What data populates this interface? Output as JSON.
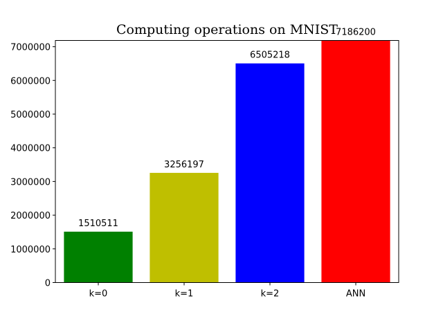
{
  "chart_data": {
    "type": "bar",
    "title": "Computing operations on MNIST",
    "xlabel": "",
    "ylabel": "",
    "categories": [
      "k=0",
      "k=1",
      "k=2",
      "ANN"
    ],
    "values": [
      1510511,
      3256197,
      6505218,
      7186200
    ],
    "value_labels": [
      "1510511",
      "3256197",
      "6505218",
      "7186200"
    ],
    "colors": [
      "#008000",
      "#bfbf00",
      "#0000ff",
      "#ff0000"
    ],
    "ylim": [
      0,
      7186200
    ],
    "yticks": [
      0,
      1000000,
      2000000,
      3000000,
      4000000,
      5000000,
      6000000,
      7000000
    ],
    "ytick_labels": [
      "0",
      "1000000",
      "2000000",
      "3000000",
      "4000000",
      "5000000",
      "6000000",
      "7000000"
    ],
    "grid": false,
    "legend": false
  }
}
